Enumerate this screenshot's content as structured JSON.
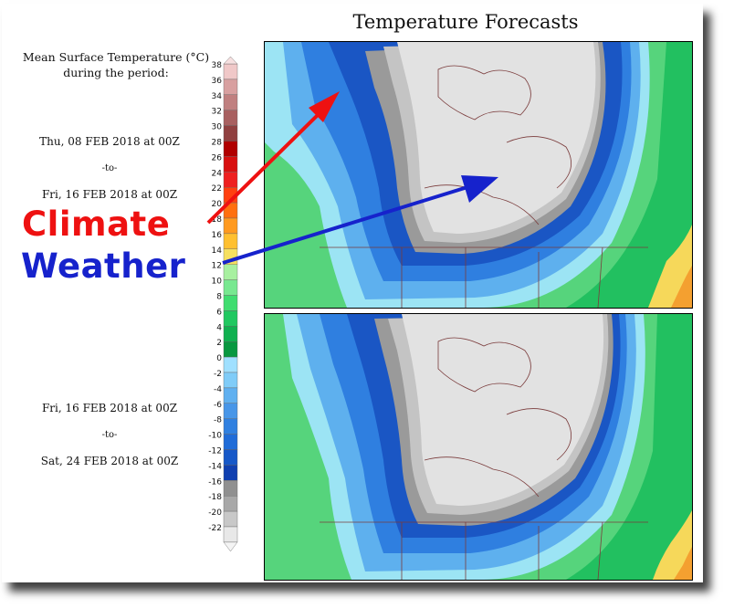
{
  "title": "Temperature Forecasts",
  "legend": {
    "heading_line1": "Mean Surface Temperature (°C)",
    "heading_line2": "during the period:",
    "unit": "°C",
    "ticks": [
      "38",
      "36",
      "34",
      "32",
      "30",
      "28",
      "26",
      "24",
      "22",
      "20",
      "18",
      "16",
      "14",
      "12",
      "10",
      "8",
      "6",
      "4",
      "2",
      "0",
      "-2",
      "-4",
      "-6",
      "-8",
      "-10",
      "-12",
      "-14",
      "-16",
      "-18",
      "-20",
      "-22"
    ],
    "colors": [
      "#f0c8c8",
      "#d8a0a0",
      "#c08080",
      "#a86060",
      "#904040",
      "#b00000",
      "#d81010",
      "#ee2020",
      "#ff4010",
      "#ff7010",
      "#ff9a20",
      "#ffc030",
      "#f6e060",
      "#a8f0a0",
      "#78e890",
      "#40dd70",
      "#20c860",
      "#10b050",
      "#089840",
      "#a0e0ff",
      "#80ccf8",
      "#60b0f0",
      "#4896e8",
      "#3080e0",
      "#206cd8",
      "#1658c8",
      "#1040b0",
      "#909090",
      "#a8a8a8",
      "#c8c8c8",
      "#e8e8e8"
    ]
  },
  "periods": [
    {
      "from": "Thu, 08 FEB 2018 at 00Z",
      "sep": "-to-",
      "to": "Fri, 16 FEB 2018 at 00Z"
    },
    {
      "from": "Fri, 16 FEB 2018 at 00Z",
      "sep": "-to-",
      "to": "Sat, 24 FEB 2018 at 00Z"
    }
  ],
  "annotations": {
    "climate": {
      "text": "Climate",
      "color": "#ee1111"
    },
    "weather": {
      "text": "Weather",
      "color": "#1622cc"
    }
  },
  "map_colors": {
    "warm_green": "#0c9a3a",
    "mid_green": "#22c060",
    "light_green": "#56d47c",
    "aqua": "#9ce4f4",
    "light_blue": "#5eb0ee",
    "mid_blue": "#2f7fe0",
    "deep_blue": "#1a56c4",
    "dark_grey": "#9a9a9a",
    "mid_grey": "#c4c4c4",
    "light_grey": "#e2e2e2",
    "boundary": "#7a3b3b",
    "yellow": "#f6d85a",
    "orange": "#f4a030"
  }
}
